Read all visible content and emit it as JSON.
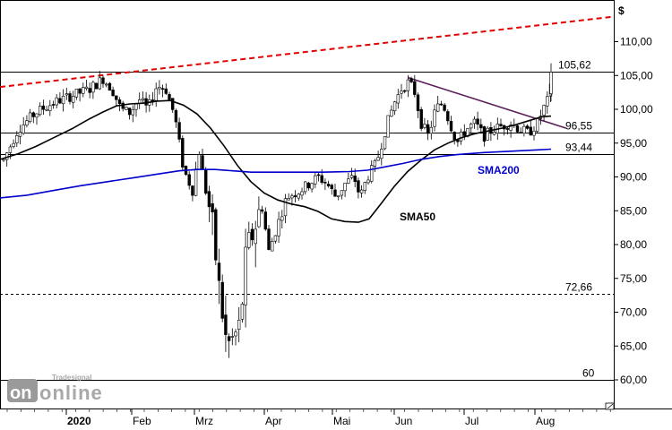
{
  "chart_data": {
    "type": "candlestick",
    "currency_symbol": "$",
    "y_axis": {
      "ticks": [
        60,
        65,
        70,
        75,
        80,
        85,
        90,
        95,
        100,
        105,
        110
      ],
      "tick_labels": [
        "60,00",
        "65,00",
        "70,00",
        "75,00",
        "80,00",
        "85,00",
        "90,00",
        "95,00",
        "100,00",
        "105,00",
        "110,00"
      ],
      "range": [
        56,
        116
      ]
    },
    "x_axis": {
      "labels": [
        "2020",
        "Feb",
        "Mrz",
        "Apr",
        "Mai",
        "Jun",
        "Jul",
        "Aug"
      ]
    },
    "levels": [
      {
        "value": 105.62,
        "label": "105,62",
        "style": "solid"
      },
      {
        "value": 96.55,
        "label": "96,55",
        "style": "solid"
      },
      {
        "value": 93.44,
        "label": "93,44",
        "style": "solid"
      },
      {
        "value": 72.66,
        "label": "72,66",
        "style": "dashed"
      },
      {
        "value": 60,
        "label": "60",
        "style": "solid"
      }
    ],
    "moving_averages": [
      {
        "name": "SMA50",
        "color": "#000000"
      },
      {
        "name": "SMA200",
        "color": "#0000cc"
      }
    ],
    "trendlines": [
      {
        "color": "#e00000",
        "style": "dashed"
      },
      {
        "color": "#5a1f5a",
        "style": "solid"
      }
    ],
    "logo": {
      "line1": "Tradesignal",
      "line2": "online"
    }
  }
}
